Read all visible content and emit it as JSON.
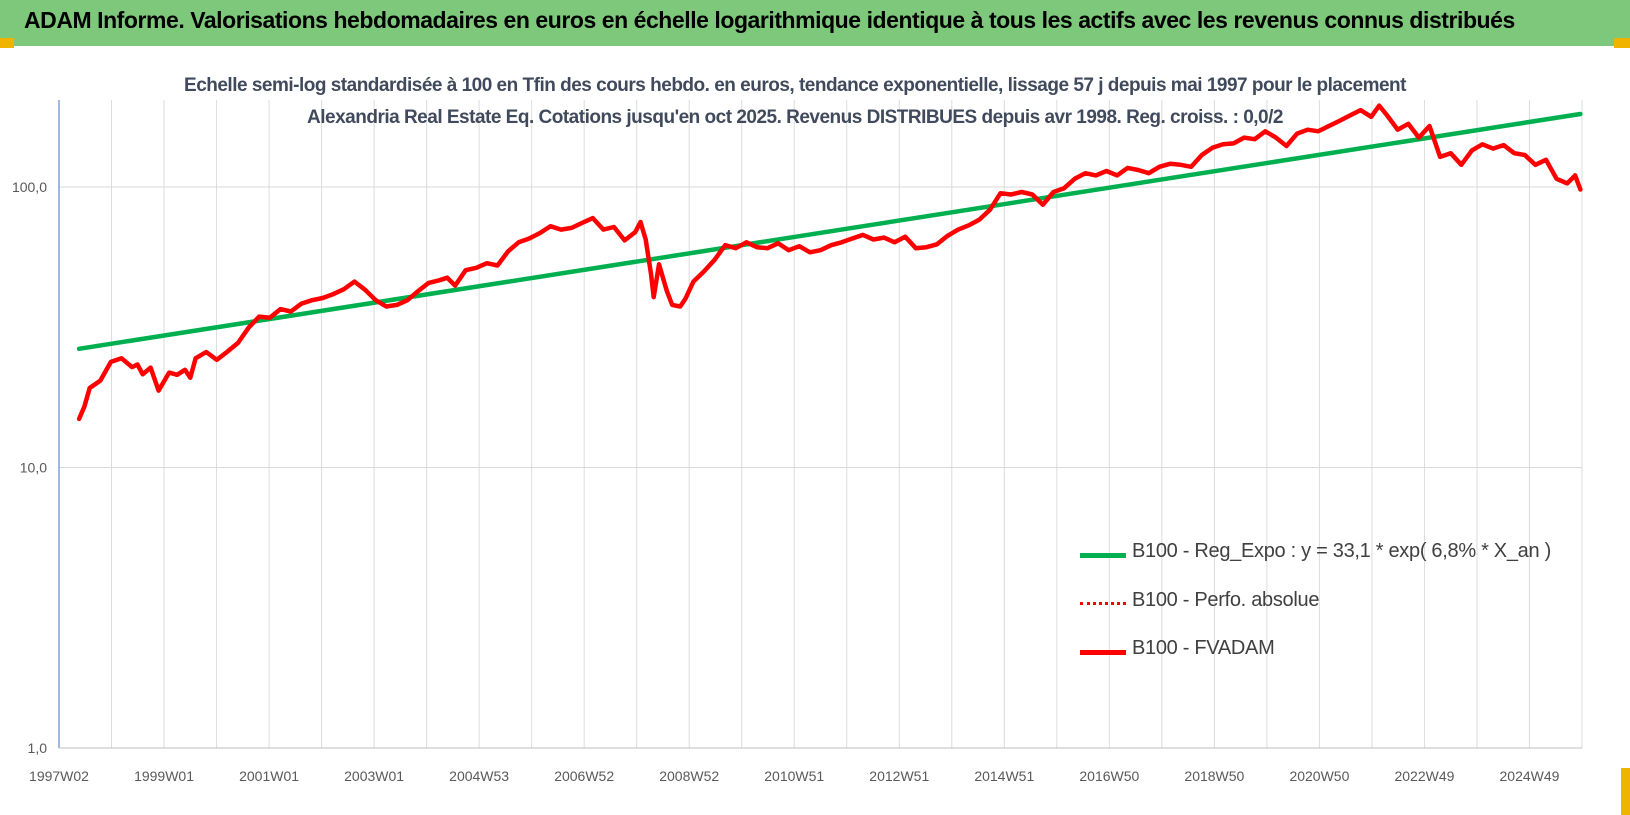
{
  "header": {
    "title": "ADAM Informe. Valorisations hebdomadaires en euros en échelle logarithmique identique à tous les actifs avec les revenus connus distribués",
    "background_color": "#7ec87b"
  },
  "chart_data": {
    "type": "line",
    "title": "Echelle semi-log standardisée à 100 en Tfin des cours hebdo. en euros, tendance exponentielle, lissage 57 j depuis mai 1997 pour le placement Alexandria Real Estate Eq. Cotations jusqu'en oct 2025. Revenus DISTRIBUES depuis avr 1998. Reg. croiss. : 0,0/2",
    "y_scale": "log",
    "ylim": [
      1,
      200
    ],
    "y_ticks": [
      "1,0",
      "10,0",
      "100,0"
    ],
    "x_range": [
      1997.02,
      2025.78
    ],
    "x_tick_labels": [
      "1997W02",
      "1999W01",
      "2001W01",
      "2003W01",
      "2004W53",
      "2006W52",
      "2008W52",
      "2010W51",
      "2012W51",
      "2014W51",
      "2016W50",
      "2018W50",
      "2020W50",
      "2022W49",
      "2024W49"
    ],
    "x_grid_count": 29,
    "grid": true,
    "legend_position": "bottom-right",
    "series": [
      {
        "name": "B100 - Reg_Expo : y = 33,1 * exp( 6,8% * X_an )",
        "style": "solid",
        "color": "#00b050",
        "x": [
          1997.4,
          2025.75
        ],
        "y": [
          26.5,
          182
        ]
      },
      {
        "name": "B100 - Perfo. absolue",
        "style": "dotted",
        "color": "#ff0000",
        "x": [],
        "y": []
      },
      {
        "name": "B100 - FVADAM",
        "style": "solid",
        "color": "#ff0000",
        "x": [
          1997.4,
          1997.5,
          1997.6,
          1997.8,
          1998.0,
          1998.2,
          1998.4,
          1998.5,
          1998.6,
          1998.75,
          1998.9,
          1999.1,
          1999.25,
          1999.4,
          1999.5,
          1999.6,
          1999.8,
          2000.0,
          2000.2,
          2000.4,
          2000.6,
          2000.8,
          2001.0,
          2001.2,
          2001.4,
          2001.6,
          2001.8,
          2002.0,
          2002.2,
          2002.4,
          2002.6,
          2002.8,
          2003.0,
          2003.2,
          2003.4,
          2003.6,
          2003.8,
          2004.0,
          2004.2,
          2004.35,
          2004.5,
          2004.7,
          2004.9,
          2005.1,
          2005.3,
          2005.5,
          2005.7,
          2005.9,
          2006.1,
          2006.3,
          2006.5,
          2006.7,
          2006.9,
          2007.1,
          2007.3,
          2007.5,
          2007.7,
          2007.9,
          2008.0,
          2008.1,
          2008.2,
          2008.25,
          2008.35,
          2008.5,
          2008.6,
          2008.75,
          2008.85,
          2009.0,
          2009.2,
          2009.4,
          2009.6,
          2009.8,
          2010.0,
          2010.2,
          2010.4,
          2010.6,
          2010.8,
          2011.0,
          2011.2,
          2011.4,
          2011.6,
          2011.8,
          2012.0,
          2012.2,
          2012.4,
          2012.6,
          2012.8,
          2013.0,
          2013.2,
          2013.4,
          2013.6,
          2013.8,
          2014.0,
          2014.2,
          2014.4,
          2014.6,
          2014.8,
          2015.0,
          2015.2,
          2015.4,
          2015.6,
          2015.8,
          2016.0,
          2016.2,
          2016.4,
          2016.6,
          2016.8,
          2017.0,
          2017.2,
          2017.4,
          2017.6,
          2017.8,
          2018.0,
          2018.2,
          2018.4,
          2018.6,
          2018.8,
          2019.0,
          2019.2,
          2019.4,
          2019.6,
          2019.8,
          2020.0,
          2020.2,
          2020.4,
          2020.6,
          2020.8,
          2021.0,
          2021.2,
          2021.4,
          2021.6,
          2021.8,
          2021.95,
          2022.1,
          2022.3,
          2022.5,
          2022.7,
          2022.9,
          2023.1,
          2023.3,
          2023.5,
          2023.7,
          2023.9,
          2024.1,
          2024.3,
          2024.5,
          2024.7,
          2024.9,
          2025.1,
          2025.3,
          2025.5,
          2025.65,
          2025.75
        ],
        "y": [
          14.9,
          16.5,
          19.2,
          20.4,
          23.8,
          24.5,
          22.8,
          23.3,
          21.5,
          22.7,
          18.8,
          21.8,
          21.4,
          22.3,
          20.9,
          24.5,
          25.8,
          24.2,
          25.9,
          27.8,
          31.5,
          34.5,
          34.2,
          36.7,
          36.0,
          38.4,
          39.5,
          40.2,
          41.5,
          43.2,
          46.0,
          43.0,
          39.5,
          37.5,
          38.0,
          39.5,
          42.5,
          45.5,
          46.5,
          47.5,
          44.5,
          50.5,
          51.5,
          53.5,
          52.5,
          59.0,
          63.5,
          65.5,
          68.5,
          72.5,
          70.5,
          71.5,
          74.5,
          77.5,
          70.5,
          72.0,
          64.5,
          69.0,
          75.0,
          65.0,
          49.0,
          40.5,
          53.0,
          42.5,
          38.0,
          37.5,
          40.0,
          46.0,
          50.0,
          55.0,
          62.0,
          60.5,
          63.5,
          61.0,
          60.5,
          63.0,
          59.5,
          61.5,
          58.5,
          59.5,
          62.0,
          63.5,
          65.5,
          67.5,
          65.0,
          66.0,
          63.5,
          66.5,
          60.5,
          61.0,
          62.5,
          67.0,
          70.5,
          73.0,
          76.5,
          83.0,
          95.0,
          94.0,
          96.0,
          94.0,
          86.5,
          96.0,
          99.0,
          107.0,
          112.0,
          110.0,
          114.0,
          110.0,
          117.0,
          115.0,
          112.0,
          118.0,
          121.0,
          120.0,
          118.0,
          130.0,
          138.0,
          142.0,
          143.0,
          150.0,
          148.0,
          158.0,
          150.0,
          140.0,
          155.0,
          160.0,
          158.0,
          165.0,
          172.0,
          180.0,
          188.0,
          178.0,
          195.0,
          180.0,
          160.0,
          168.0,
          150.0,
          165.0,
          128.0,
          132.0,
          120.0,
          135.0,
          142.0,
          137.0,
          141.0,
          132.0,
          130.0,
          120.0,
          125.0,
          107.0,
          103.0,
          110.0,
          98.0
        ]
      }
    ]
  }
}
